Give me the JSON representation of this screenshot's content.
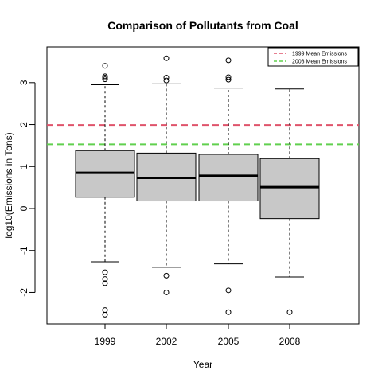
{
  "chart_data": {
    "type": "boxplot",
    "title": "Comparison of Pollutants from Coal",
    "xlabel": "Year",
    "ylabel": "log10(Emissions in Tons)",
    "categories": [
      "1999",
      "2002",
      "2005",
      "2008"
    ],
    "yticks": [
      -2,
      -1,
      0,
      1,
      2,
      3
    ],
    "ytick_labels": [
      "-2",
      "-1",
      "0",
      "1",
      "2",
      "3"
    ],
    "ylim": [
      -2.75,
      3.85
    ],
    "box_fill": "#c8c8c8",
    "boxes": [
      {
        "category": "1999",
        "whisker_low": -1.27,
        "q1": 0.27,
        "median": 0.85,
        "q3": 1.38,
        "whisker_high": 2.95,
        "outliers": [
          3.4,
          3.15,
          3.12,
          3.08,
          -1.52,
          -1.68,
          -1.78,
          -2.42,
          -2.53
        ]
      },
      {
        "category": "2002",
        "whisker_low": -1.4,
        "q1": 0.18,
        "median": 0.73,
        "q3": 1.32,
        "whisker_high": 2.97,
        "outliers": [
          3.58,
          3.12,
          3.05,
          -1.6,
          -2.0
        ]
      },
      {
        "category": "2005",
        "whisker_low": -1.32,
        "q1": 0.18,
        "median": 0.78,
        "q3": 1.29,
        "whisker_high": 2.87,
        "outliers": [
          3.53,
          3.13,
          3.07,
          -1.95,
          -2.47
        ]
      },
      {
        "category": "2008",
        "whisker_low": -1.63,
        "q1": -0.24,
        "median": 0.51,
        "q3": 1.19,
        "whisker_high": 2.85,
        "outliers": [
          -2.47
        ]
      }
    ],
    "reference_lines": [
      {
        "name": "1999 Mean Emissions",
        "value": 1.99,
        "color": "#df536b"
      },
      {
        "name": "2008 Mean Emissions",
        "value": 1.53,
        "color": "#61d04f"
      }
    ],
    "legend_position": "top-right"
  }
}
